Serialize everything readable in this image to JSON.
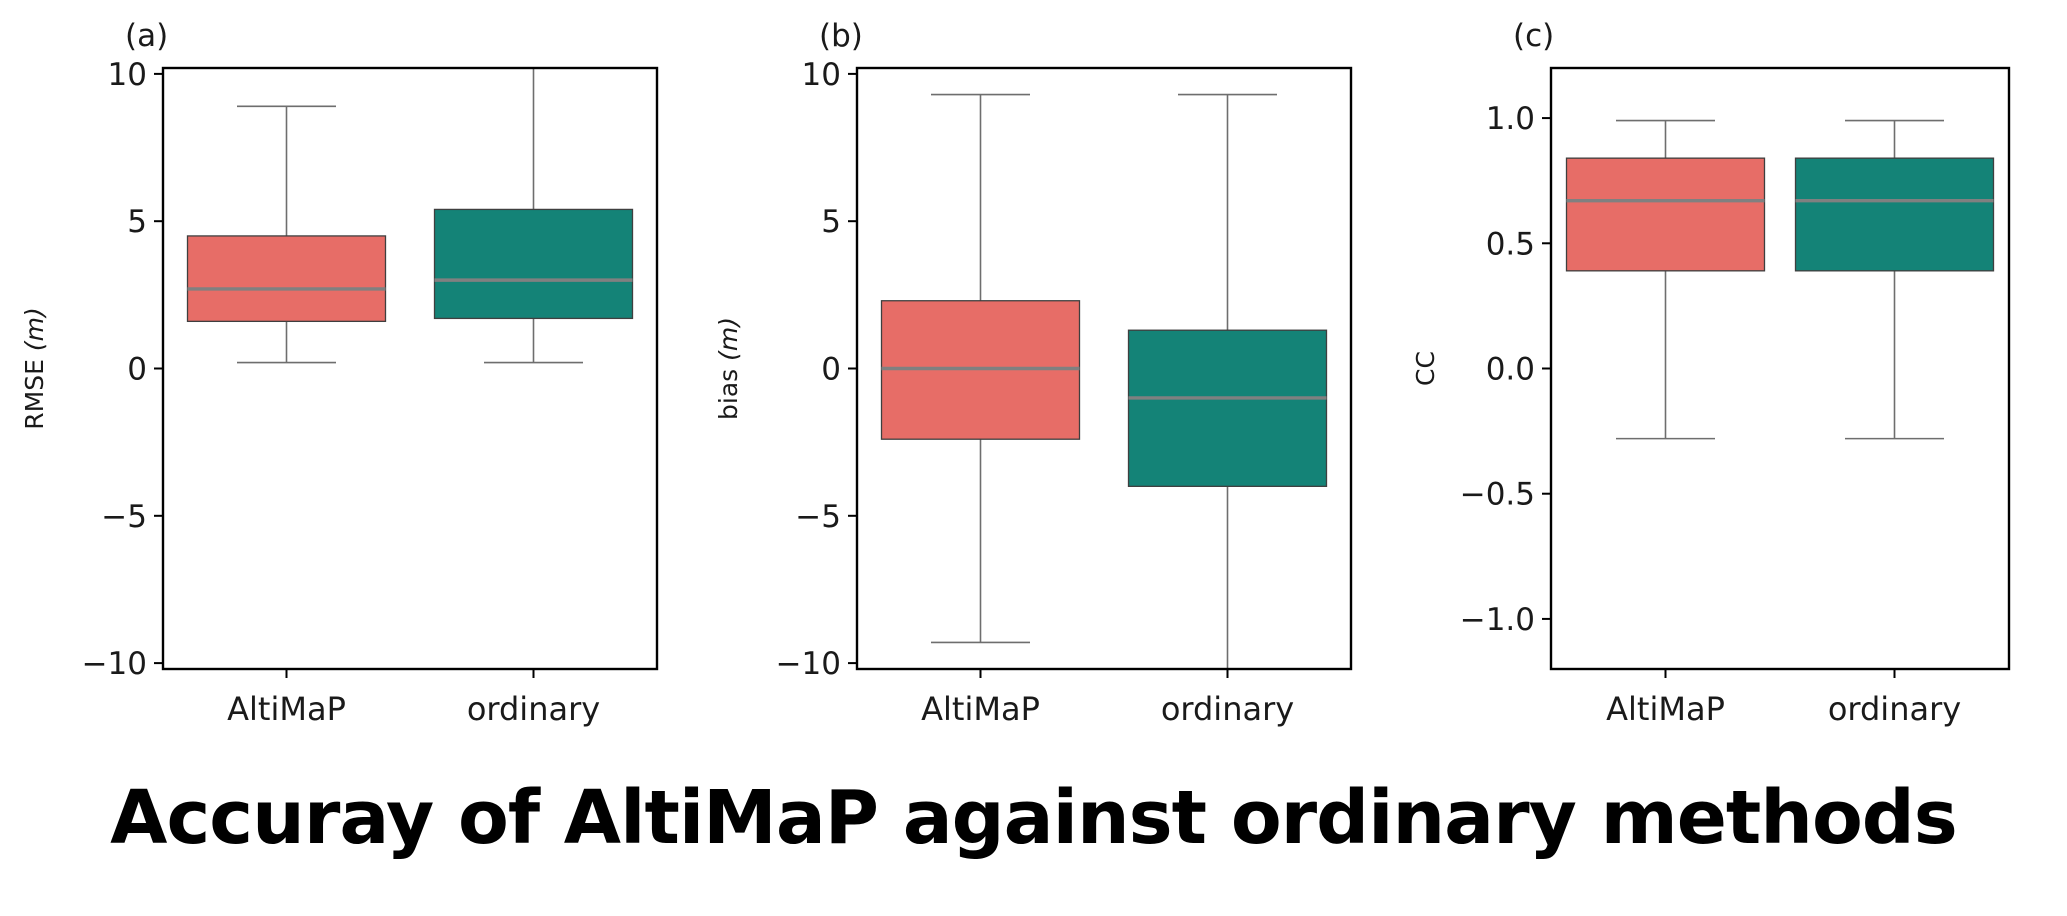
{
  "title": "Accuray of AltiMaP against ordinary methods",
  "chart_data": [
    {
      "type": "box",
      "panel_label": "(a)",
      "ylabel": "RMSE",
      "ylabel_unit": "(m)",
      "ylim": [
        -10.2,
        10.2
      ],
      "yticks": [
        10,
        5,
        0,
        -5,
        -10
      ],
      "ytick_labels": [
        "10",
        "5",
        "0",
        "−5",
        "−10"
      ],
      "categories": [
        "AltiMaP",
        "ordinary"
      ],
      "boxes": [
        {
          "category": "AltiMaP",
          "whisker_low": 0.2,
          "q1": 1.6,
          "median": 2.7,
          "q3": 4.5,
          "whisker_high": 8.9,
          "color": "#e76d67"
        },
        {
          "category": "ordinary",
          "whisker_low": 0.2,
          "q1": 1.7,
          "median": 3.0,
          "q3": 5.4,
          "whisker_high": 10.2,
          "color": "#148377"
        }
      ]
    },
    {
      "type": "box",
      "panel_label": "(b)",
      "ylabel": "bias",
      "ylabel_unit": "(m)",
      "ylim": [
        -10.2,
        10.2
      ],
      "yticks": [
        10,
        5,
        0,
        -5,
        -10
      ],
      "ytick_labels": [
        "10",
        "5",
        "0",
        "−5",
        "−10"
      ],
      "categories": [
        "AltiMaP",
        "ordinary"
      ],
      "boxes": [
        {
          "category": "AltiMaP",
          "whisker_low": -9.3,
          "q1": -2.4,
          "median": 0.0,
          "q3": 2.3,
          "whisker_high": 9.3,
          "color": "#e76d67"
        },
        {
          "category": "ordinary",
          "whisker_low": -10.2,
          "q1": -4.0,
          "median": -1.0,
          "q3": 1.3,
          "whisker_high": 9.3,
          "color": "#148377"
        }
      ]
    },
    {
      "type": "box",
      "panel_label": "(c)",
      "ylabel": "CC",
      "ylabel_unit": "",
      "ylim": [
        -1.2,
        1.2
      ],
      "yticks": [
        1.0,
        0.5,
        0.0,
        -0.5,
        -1.0
      ],
      "ytick_labels": [
        "1.0",
        "0.5",
        "0.0",
        "−0.5",
        "−1.0"
      ],
      "categories": [
        "AltiMaP",
        "ordinary"
      ],
      "boxes": [
        {
          "category": "AltiMaP",
          "whisker_low": -0.28,
          "q1": 0.39,
          "median": 0.67,
          "q3": 0.84,
          "whisker_high": 0.99,
          "color": "#e76d67"
        },
        {
          "category": "ordinary",
          "whisker_low": -0.28,
          "q1": 0.39,
          "median": 0.67,
          "q3": 0.84,
          "whisker_high": 0.99,
          "color": "#148377"
        }
      ]
    }
  ]
}
